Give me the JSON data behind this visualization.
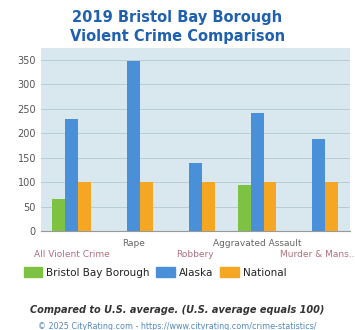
{
  "title": "2019 Bristol Bay Borough\nViolent Crime Comparison",
  "title_color": "#2060b0",
  "categories": [
    "All Violent Crime",
    "Rape",
    "Robbery",
    "Aggravated Assault",
    "Murder & Mans..."
  ],
  "x_labels_top": [
    "Rape",
    "Aggravated Assault"
  ],
  "x_labels_top_indices": [
    1,
    3
  ],
  "x_labels_bot": [
    "All Violent Crime",
    "Robbery",
    "Murder & Mans..."
  ],
  "x_labels_bot_indices": [
    0,
    2,
    4
  ],
  "bristol_values": [
    65,
    0,
    0,
    95,
    0
  ],
  "alaska_values": [
    230,
    348,
    140,
    242,
    188
  ],
  "national_values": [
    100,
    100,
    100,
    100,
    100
  ],
  "bristol_color": "#7dc242",
  "alaska_color": "#4a90d9",
  "national_color": "#f5a623",
  "ylim": [
    0,
    375
  ],
  "yticks": [
    0,
    50,
    100,
    150,
    200,
    250,
    300,
    350
  ],
  "plot_bg_color": "#d8e8ee",
  "grid_color": "#b8cdd6",
  "legend_labels": [
    "Bristol Bay Borough",
    "Alaska",
    "National"
  ],
  "legend_text_colors": [
    "#333333",
    "#333333",
    "#333333"
  ],
  "x_top_label_color": "#666666",
  "x_bot_label_color": "#b07080",
  "footnote1": "Compared to U.S. average. (U.S. average equals 100)",
  "footnote2": "© 2025 CityRating.com - https://www.cityrating.com/crime-statistics/",
  "footnote1_color": "#333333",
  "footnote2_color": "#5588bb"
}
